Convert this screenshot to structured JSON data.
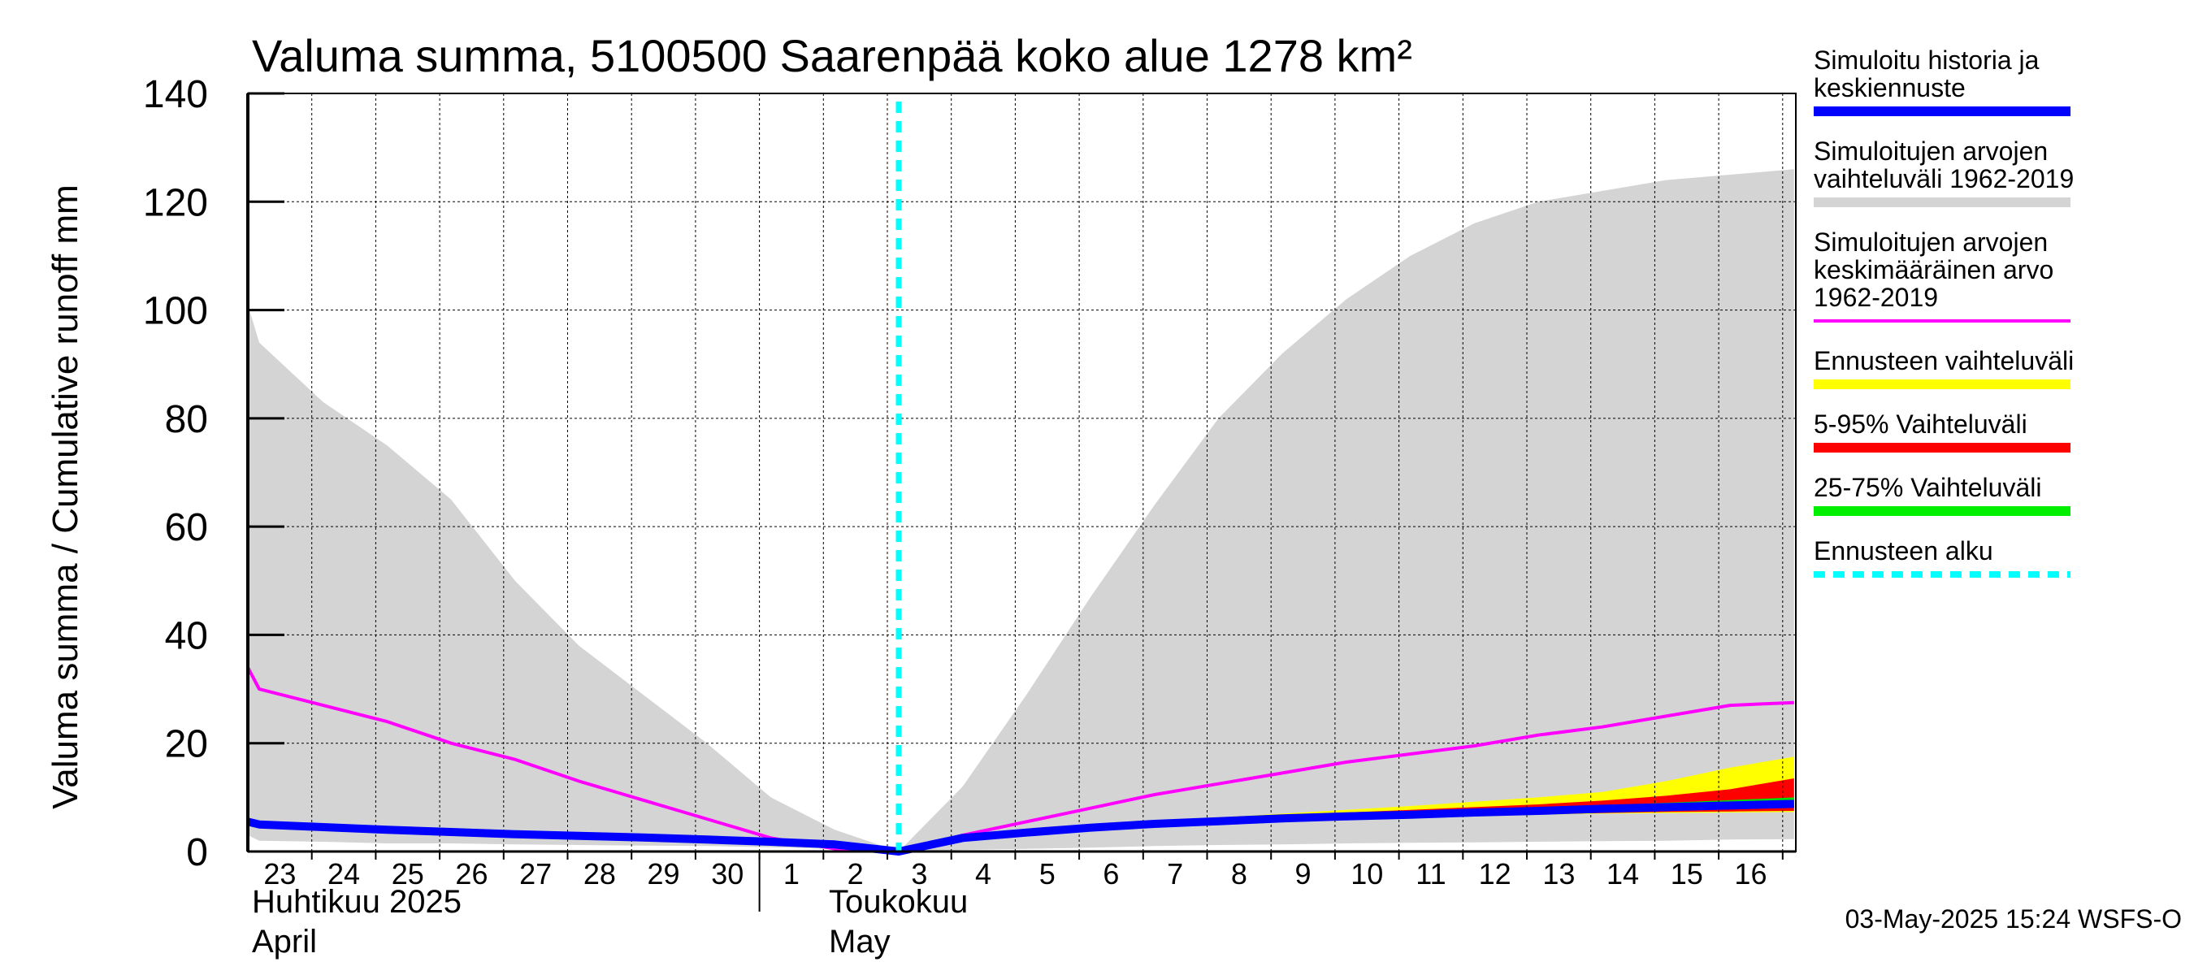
{
  "chart_data": {
    "type": "area",
    "title": "Valuma summa, 5100500 Saarenpää koko alue 1278 km²",
    "ylabel": "Valuma summa / Cumulative runoff    mm",
    "ylim": [
      0,
      140
    ],
    "yticks": [
      0,
      20,
      40,
      60,
      80,
      100,
      120,
      140
    ],
    "grid": true,
    "legend_position": "right",
    "x_start": "2025-04-23",
    "x_end": "2025-05-16",
    "day_ticks": [
      "23",
      "24",
      "25",
      "26",
      "27",
      "28",
      "29",
      "30",
      "1",
      "2",
      "3",
      "4",
      "5",
      "6",
      "7",
      "8",
      "9",
      "10",
      "11",
      "12",
      "13",
      "14",
      "15",
      "16"
    ],
    "months": [
      {
        "fi": "Huhtikuu  2025",
        "en": "April"
      },
      {
        "fi": "Toukokuu",
        "en": "May"
      }
    ],
    "forecast_start": "2025-05-03",
    "x": [
      "04-22",
      "04-23",
      "04-24",
      "04-25",
      "04-26",
      "04-27",
      "04-28",
      "04-29",
      "04-30",
      "05-01",
      "05-02",
      "05-03",
      "05-04",
      "05-05",
      "05-06",
      "05-07",
      "05-08",
      "05-09",
      "05-10",
      "05-11",
      "05-12",
      "05-13",
      "05-14",
      "05-15",
      "05-16",
      "05-17"
    ],
    "series": [
      {
        "name": "Simuloitujen arvojen vaihteluväli 1962-2019",
        "type": "band",
        "color": "#d4d4d4",
        "low": [
          3,
          2,
          1.8,
          1.5,
          1.5,
          1.3,
          1.2,
          1.1,
          1,
          0.8,
          0.5,
          0,
          0.3,
          0.5,
          0.7,
          1,
          1.2,
          1.3,
          1.5,
          1.6,
          1.7,
          1.8,
          1.9,
          2,
          2.2,
          2.3
        ],
        "high": [
          101,
          94,
          83,
          75,
          65,
          50,
          38,
          29,
          20,
          10,
          4,
          0,
          12,
          29,
          47,
          64,
          80,
          92,
          102,
          110,
          116,
          120,
          122,
          124,
          125,
          126
        ]
      },
      {
        "name": "Ennusteen vaihteluväli",
        "type": "band",
        "color": "#ffff00",
        "x": [
          "05-03",
          "05-04",
          "05-05",
          "05-06",
          "05-07",
          "05-08",
          "05-09",
          "05-10",
          "05-11",
          "05-12",
          "05-13",
          "05-14",
          "05-15",
          "05-16",
          "05-17"
        ],
        "low": [
          0,
          2.5,
          3.4,
          4.2,
          4.8,
          5.3,
          5.8,
          6.1,
          6.3,
          6.6,
          6.8,
          7,
          7.1,
          7.2,
          7.3
        ],
        "high": [
          0,
          2.8,
          3.8,
          4.7,
          5.5,
          6.3,
          7,
          7.7,
          8.4,
          9.2,
          10,
          11,
          13,
          15.5,
          17.5
        ]
      },
      {
        "name": "5-95% Vaihteluväli",
        "type": "band",
        "color": "#ff0000",
        "x": [
          "05-03",
          "05-04",
          "05-05",
          "05-06",
          "05-07",
          "05-08",
          "05-09",
          "05-10",
          "05-11",
          "05-12",
          "05-13",
          "05-14",
          "05-15",
          "05-16",
          "05-17"
        ],
        "low": [
          0,
          2.6,
          3.5,
          4.3,
          4.9,
          5.4,
          5.9,
          6.2,
          6.4,
          6.7,
          6.9,
          7.1,
          7.3,
          7.4,
          7.5
        ],
        "high": [
          0,
          2.7,
          3.7,
          4.6,
          5.3,
          6,
          6.6,
          7.2,
          7.7,
          8.2,
          8.7,
          9.4,
          10.3,
          11.5,
          13.5
        ]
      },
      {
        "name": "25-75% Vaihteluväli",
        "type": "band",
        "color": "#00dd00",
        "x": [
          "05-03",
          "05-04",
          "05-05",
          "05-06",
          "05-07",
          "05-08",
          "05-09",
          "05-10",
          "05-11",
          "05-12",
          "05-13",
          "05-14",
          "05-15",
          "05-16",
          "05-17"
        ],
        "low": [
          0,
          2.65,
          3.55,
          4.4,
          5,
          5.5,
          6,
          6.4,
          6.7,
          7,
          7.3,
          7.6,
          7.9,
          8.1,
          8.3
        ],
        "high": [
          0,
          2.7,
          3.65,
          4.5,
          5.2,
          5.8,
          6.3,
          6.8,
          7.2,
          7.6,
          8,
          8.5,
          9,
          9.5,
          10
        ]
      },
      {
        "name": "Simuloitujen arvojen keskimääräinen arvo 1962-2019",
        "type": "line",
        "color": "#ff00ff",
        "values": [
          34,
          30,
          27,
          24,
          20,
          17,
          13,
          9.5,
          6,
          2.5,
          0.5,
          0,
          3,
          5.5,
          8,
          10.5,
          12.5,
          14.5,
          16.5,
          18,
          19.5,
          21.5,
          23,
          25,
          27,
          27.5
        ]
      },
      {
        "name": "Simuloitu historia ja keskiennuste",
        "type": "line",
        "color": "#0000ff",
        "values": [
          5.5,
          5,
          4.5,
          4,
          3.6,
          3.2,
          2.9,
          2.6,
          2.2,
          1.8,
          1.3,
          0,
          2.5,
          3.5,
          4.4,
          5.1,
          5.6,
          6.1,
          6.5,
          6.8,
          7.2,
          7.5,
          7.9,
          8.2,
          8.5,
          8.8
        ]
      }
    ]
  },
  "legend": [
    {
      "lines": [
        "Simuloitu historia ja",
        "keskiennuste"
      ],
      "color": "#0000ff",
      "style": "solid"
    },
    {
      "lines": [
        "Simuloitujen arvojen",
        "vaihteluväli 1962-2019"
      ],
      "color": "#d4d4d4",
      "style": "solid"
    },
    {
      "lines": [
        "Simuloitujen arvojen",
        "keskimääräinen arvo",
        "   1962-2019"
      ],
      "color": "#ff00ff",
      "style": "thin"
    },
    {
      "lines": [
        "Ennusteen vaihteluväli"
      ],
      "color": "#ffff00",
      "style": "solid"
    },
    {
      "lines": [
        "5-95% Vaihteluväli"
      ],
      "color": "#ff0000",
      "style": "solid"
    },
    {
      "lines": [
        "25-75% Vaihteluväli"
      ],
      "color": "#00ee00",
      "style": "solid"
    },
    {
      "lines": [
        "Ennusteen alku"
      ],
      "color": "#00ffff",
      "style": "dashed"
    }
  ],
  "timestamp": "03-May-2025 15:24 WSFS-O"
}
